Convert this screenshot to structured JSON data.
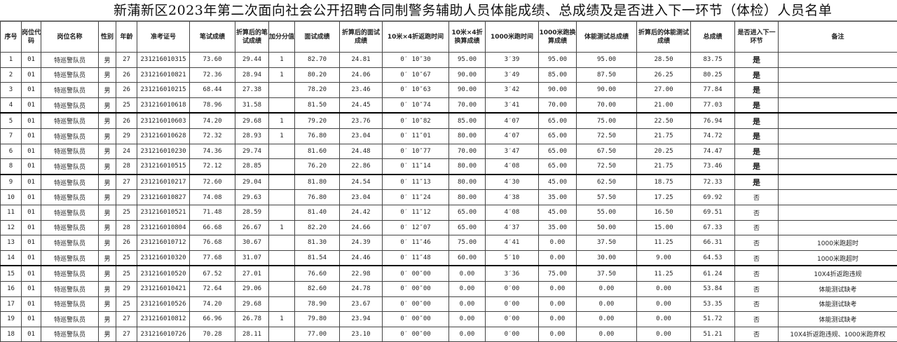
{
  "title": "新蒲新区2023年第二次面向社会公开招聘合同制警务辅助人员体能成绩、总成绩及是否进入下一环节（体检）人员名单",
  "headers": [
    "序号",
    "岗位代码",
    "岗位名称",
    "性别",
    "年龄",
    "准考证号",
    "笔试成绩",
    "折算后的笔试成绩",
    "加分分值",
    "面试成绩",
    "折算后的面试成绩",
    "10米×4折返跑时间",
    "10米×4折换算成绩",
    "1000米跑时间",
    "1000米跑换算成绩",
    "体能测试总成绩",
    "折算后的体能测试成绩",
    "总成绩",
    "是否进入下一环节",
    "备注"
  ],
  "rows": [
    [
      "1",
      "01",
      "特巡警队员",
      "男",
      "27",
      "231216010315",
      "73.60",
      "29.44",
      "1",
      "82.70",
      "24.81",
      "0′ 10″30",
      "95.00",
      "3′39",
      "95.00",
      "95.00",
      "28.50",
      "83.75",
      "是",
      ""
    ],
    [
      "2",
      "01",
      "特巡警队员",
      "男",
      "26",
      "231216010821",
      "72.36",
      "28.94",
      "1",
      "80.20",
      "24.06",
      "0′ 10″67",
      "90.00",
      "3′49",
      "85.00",
      "87.50",
      "26.25",
      "80.25",
      "是",
      ""
    ],
    [
      "3",
      "01",
      "特巡警队员",
      "男",
      "26",
      "231216010215",
      "68.44",
      "27.38",
      "",
      "78.20",
      "23.46",
      "0′ 10″63",
      "90.00",
      "3′42",
      "90.00",
      "90.00",
      "27.00",
      "77.84",
      "是",
      ""
    ],
    [
      "4",
      "01",
      "特巡警队员",
      "男",
      "25",
      "231216010618",
      "78.96",
      "31.58",
      "",
      "81.50",
      "24.45",
      "0′ 10″74",
      "70.00",
      "3′41",
      "70.00",
      "70.00",
      "21.00",
      "77.03",
      "是",
      ""
    ],
    [
      "5",
      "01",
      "特巡警队员",
      "男",
      "26",
      "231216010603",
      "74.20",
      "29.68",
      "1",
      "79.20",
      "23.76",
      "0′ 10″82",
      "85.00",
      "4′07",
      "65.00",
      "75.00",
      "22.50",
      "76.94",
      "是",
      ""
    ],
    [
      "7",
      "01",
      "特巡警队员",
      "男",
      "29",
      "231216010628",
      "72.32",
      "28.93",
      "1",
      "76.80",
      "23.04",
      "0′ 11″01",
      "80.00",
      "4′07",
      "65.00",
      "72.50",
      "21.75",
      "74.72",
      "是",
      ""
    ],
    [
      "6",
      "01",
      "特巡警队员",
      "男",
      "24",
      "231216010230",
      "74.36",
      "29.74",
      "",
      "81.60",
      "24.48",
      "0′ 10″77",
      "70.00",
      "3′47",
      "65.00",
      "67.50",
      "20.25",
      "74.47",
      "是",
      ""
    ],
    [
      "8",
      "01",
      "特巡警队员",
      "男",
      "28",
      "231216010515",
      "72.12",
      "28.85",
      "",
      "76.20",
      "22.86",
      "0′ 11″14",
      "80.00",
      "4′08",
      "65.00",
      "72.50",
      "21.75",
      "73.46",
      "是",
      ""
    ],
    [
      "9",
      "01",
      "特巡警队员",
      "男",
      "27",
      "231216010217",
      "72.60",
      "29.04",
      "",
      "81.80",
      "24.54",
      "0′ 11″13",
      "80.00",
      "4′30",
      "45.00",
      "62.50",
      "18.75",
      "72.33",
      "是",
      ""
    ],
    [
      "10",
      "01",
      "特巡警队员",
      "男",
      "29",
      "231216010827",
      "74.08",
      "29.63",
      "",
      "76.80",
      "23.04",
      "0′ 11″24",
      "80.00",
      "4′38",
      "35.00",
      "57.50",
      "17.25",
      "69.92",
      "否",
      ""
    ],
    [
      "11",
      "01",
      "特巡警队员",
      "男",
      "25",
      "231216010521",
      "71.48",
      "28.59",
      "",
      "81.40",
      "24.42",
      "0′ 11″12",
      "65.00",
      "4′08",
      "45.00",
      "55.00",
      "16.50",
      "69.51",
      "否",
      ""
    ],
    [
      "12",
      "01",
      "特巡警队员",
      "男",
      "28",
      "231216010804",
      "66.68",
      "26.67",
      "1",
      "82.20",
      "24.66",
      "0′ 12″07",
      "65.00",
      "4′37",
      "35.00",
      "50.00",
      "15.00",
      "67.33",
      "否",
      ""
    ],
    [
      "13",
      "01",
      "特巡警队员",
      "男",
      "26",
      "231216010712",
      "76.68",
      "30.67",
      "",
      "81.30",
      "24.39",
      "0′ 11″46",
      "75.00",
      "4′41",
      "0.00",
      "37.50",
      "11.25",
      "66.31",
      "否",
      "1000米跑超时"
    ],
    [
      "14",
      "01",
      "特巡警队员",
      "男",
      "25",
      "231216010320",
      "77.68",
      "31.07",
      "",
      "81.54",
      "24.46",
      "0′ 11″48",
      "60.00",
      "5′10",
      "0.00",
      "30.00",
      "9.00",
      "64.53",
      "否",
      "1000米跑超时"
    ],
    [
      "15",
      "01",
      "特巡警队员",
      "男",
      "25",
      "231216010520",
      "67.52",
      "27.01",
      "",
      "76.60",
      "22.98",
      "0′ 00″00",
      "0.00",
      "3′36",
      "75.00",
      "37.50",
      "11.25",
      "61.24",
      "否",
      "10X4折返跑违规"
    ],
    [
      "16",
      "01",
      "特巡警队员",
      "男",
      "29",
      "231216010421",
      "72.64",
      "29.06",
      "",
      "82.60",
      "24.78",
      "0′ 00″00",
      "0.00",
      "0′00",
      "0.00",
      "0.00",
      "0.00",
      "53.84",
      "否",
      "体能测试缺考"
    ],
    [
      "17",
      "01",
      "特巡警队员",
      "男",
      "25",
      "231216010526",
      "74.20",
      "29.68",
      "",
      "78.90",
      "23.67",
      "0′ 00″00",
      "0.00",
      "0′00",
      "0.00",
      "0.00",
      "0.00",
      "53.35",
      "否",
      "体能测试缺考"
    ],
    [
      "19",
      "01",
      "特巡警队员",
      "男",
      "27",
      "231216010812",
      "66.96",
      "26.78",
      "1",
      "79.80",
      "23.94",
      "0′ 00″00",
      "0.00",
      "0′00",
      "0.00",
      "0.00",
      "0.00",
      "51.72",
      "否",
      "体能测试缺考"
    ],
    [
      "18",
      "01",
      "特巡警队员",
      "男",
      "27",
      "231216010726",
      "70.28",
      "28.11",
      "",
      "77.00",
      "23.10",
      "0′ 00″00",
      "0.00",
      "0′00",
      "0.00",
      "0.00",
      "0.00",
      "51.21",
      "否",
      "10X4折返跑违规、1000米跑弃权"
    ]
  ]
}
